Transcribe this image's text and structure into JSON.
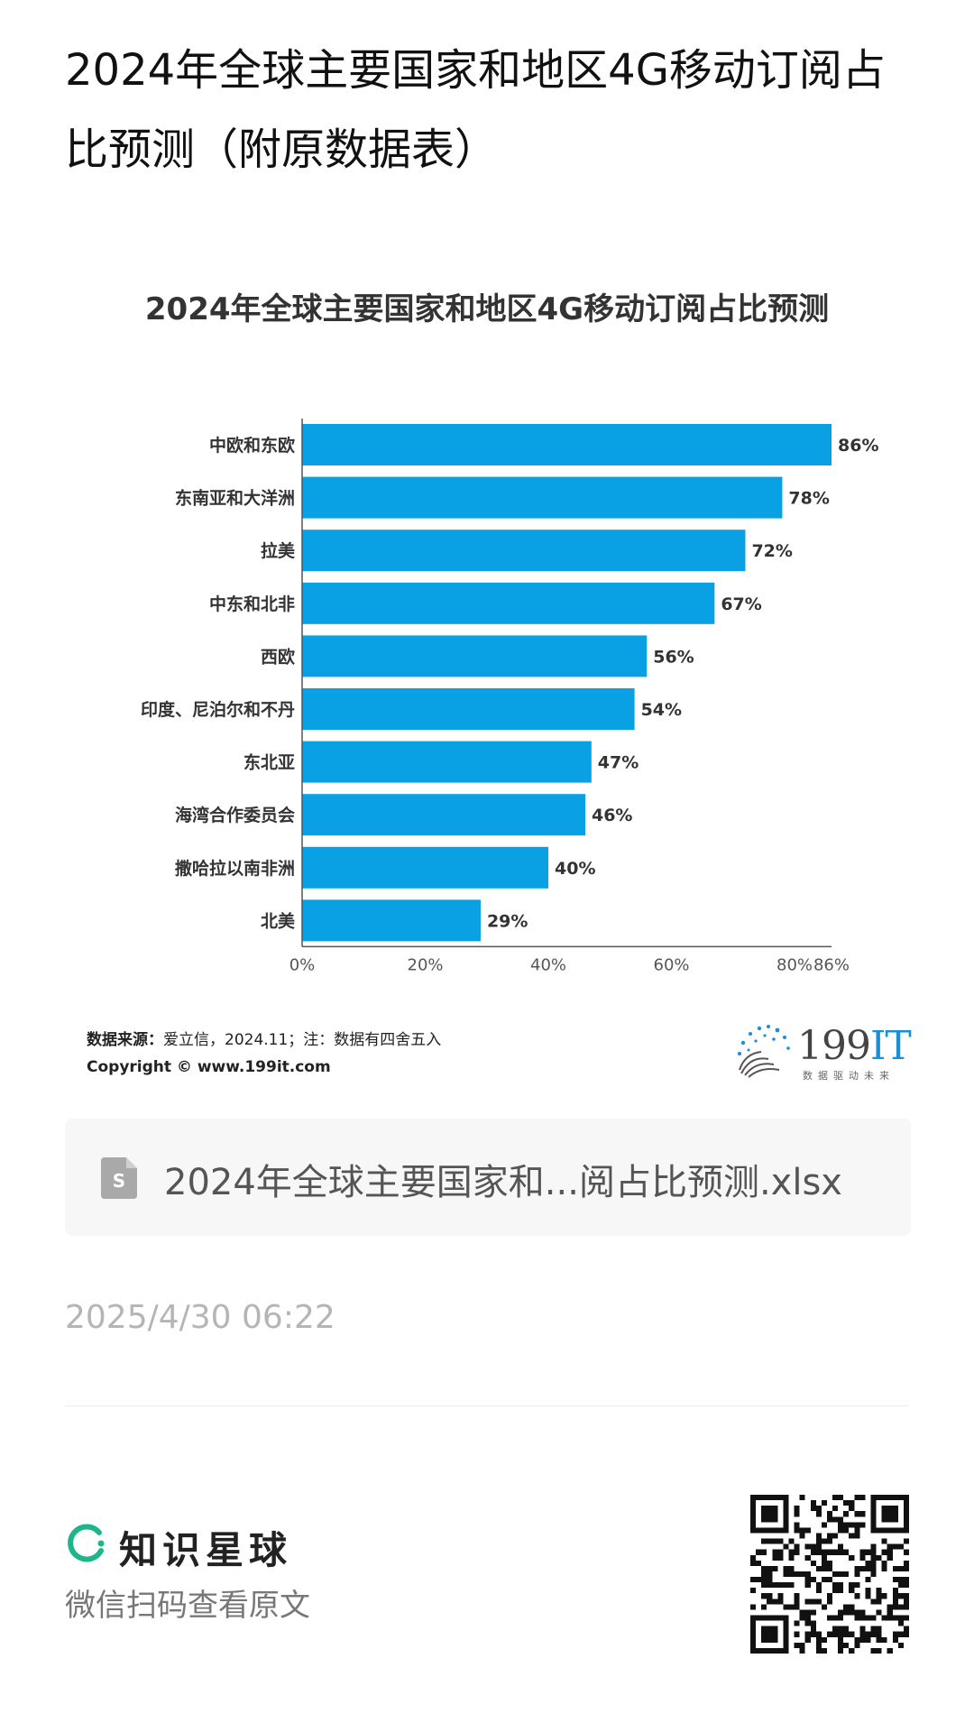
{
  "page": {
    "title": "2024年全球主要国家和地区4G移动订阅占比预测（附原数据表）"
  },
  "chart_data": {
    "type": "bar",
    "orientation": "horizontal",
    "title": "2024年全球主要国家和地区4G移动订阅占比预测",
    "categories": [
      "中欧和东欧",
      "东南亚和大洋洲",
      "拉美",
      "中东和北非",
      "西欧",
      "印度、尼泊尔和不丹",
      "东北亚",
      "海湾合作委员会",
      "撒哈拉以南非洲",
      "北美"
    ],
    "values": [
      86,
      78,
      72,
      67,
      56,
      54,
      47,
      46,
      40,
      29
    ],
    "value_labels": [
      "86%",
      "78%",
      "72%",
      "67%",
      "56%",
      "54%",
      "47%",
      "46%",
      "40%",
      "29%"
    ],
    "x_ticks": [
      0,
      20,
      40,
      60,
      80,
      86
    ],
    "x_tick_labels": [
      "0%",
      "20%",
      "40%",
      "60%",
      "80%",
      "86%"
    ],
    "xlim": [
      0,
      86
    ],
    "bar_color": "#0aa0e4",
    "grid": false,
    "legend": "none"
  },
  "source": {
    "label": "数据来源：",
    "text": "爱立信，2024.11；注：数据有四舍五入",
    "copyright": "Copyright ©  www.199it.com"
  },
  "logo": {
    "number": "199",
    "it": "IT",
    "tagline": "数据驱动未来",
    "accent": "#1a8ed6"
  },
  "file": {
    "icon": "spreadsheet-file-icon",
    "name": "2024年全球主要国家和...阅占比预测.xlsx"
  },
  "meta": {
    "timestamp": "2025/4/30 06:22"
  },
  "footer": {
    "brand_name": "知识星球",
    "brand_color": "#1fb58a",
    "scan_text": "微信扫码查看原文",
    "qr_icon": "qr-code-icon"
  }
}
